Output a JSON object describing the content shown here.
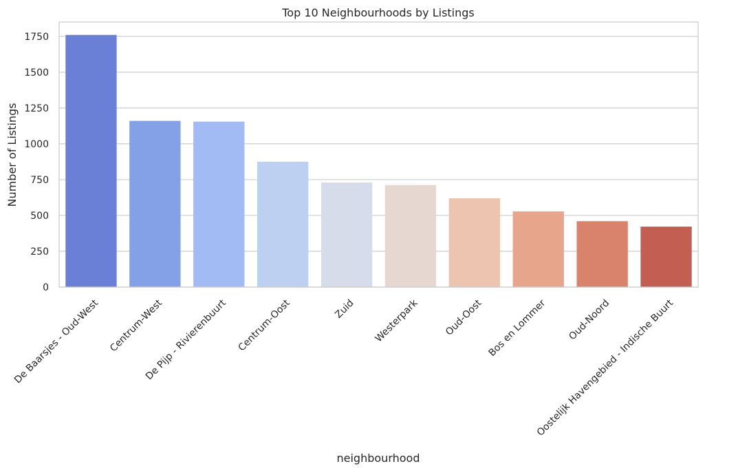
{
  "chart_data": {
    "type": "bar",
    "title": "Top 10 Neighbourhoods by Listings",
    "xlabel": "neighbourhood",
    "ylabel": "Number of Listings",
    "categories": [
      "De Baarsjes - Oud-West",
      "Centrum-West",
      "De Pijp - Rivierenbuurt",
      "Centrum-Oost",
      "Zuid",
      "Westerpark",
      "Oud-Oost",
      "Bos en Lommer",
      "Oud-Noord",
      "Oostelijk Havengebied - Indische Buurt"
    ],
    "values": [
      1760,
      1160,
      1155,
      875,
      730,
      712,
      620,
      528,
      460,
      422
    ],
    "colors": [
      "#6a7fd6",
      "#84a0e6",
      "#a3bbf4",
      "#bed0f2",
      "#d6dce9",
      "#e6d8d0",
      "#ecc4b0",
      "#e7a68c",
      "#d9836c",
      "#c35e52"
    ],
    "yticks": [
      0,
      250,
      500,
      750,
      1000,
      1250,
      1500,
      1750
    ],
    "ylim": [
      0,
      1850
    ],
    "grid": true,
    "legend": "none"
  }
}
